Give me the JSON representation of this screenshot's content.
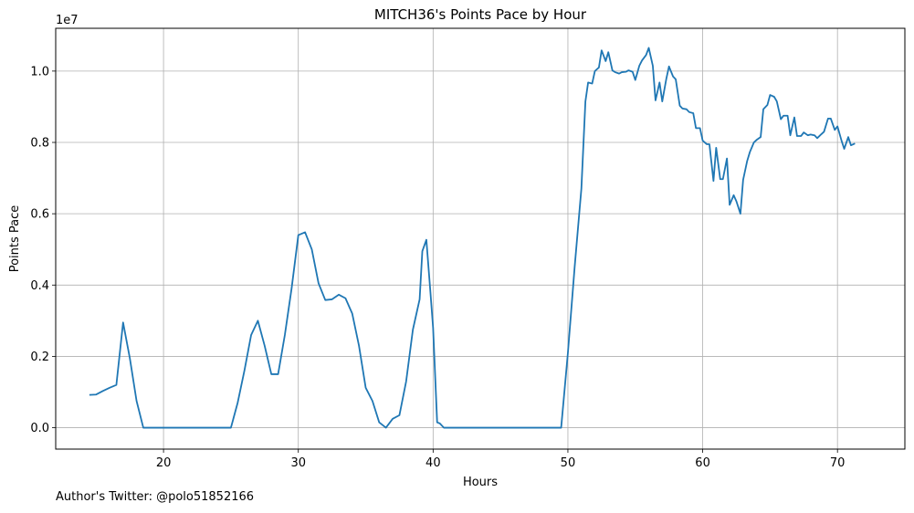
{
  "chart_data": {
    "type": "line",
    "title": "MITCH36's Points Pace by Hour",
    "xlabel": "Hours",
    "ylabel": "Points Pace",
    "y_scale_label": "1e7",
    "xlim": [
      12,
      75
    ],
    "ylim": [
      -0.6,
      11.2
    ],
    "x_ticks": [
      20,
      30,
      40,
      50,
      60,
      70
    ],
    "y_ticks": [
      0.0,
      0.2,
      0.4,
      0.6,
      0.8,
      1.0
    ],
    "y_tick_labels": [
      "0.0",
      "0.2",
      "0.4",
      "0.6",
      "0.8",
      "1.0"
    ],
    "grid": true,
    "series": [
      {
        "color": "#1f77b4",
        "x": [
          14.5,
          15.0,
          15.5,
          16.0,
          16.5,
          17.0,
          17.5,
          18.0,
          18.5,
          19.0,
          20.0,
          21.0,
          22.0,
          23.0,
          24.0,
          25.0,
          25.5,
          26.0,
          26.5,
          27.0,
          27.5,
          28.0,
          28.5,
          29.0,
          29.5,
          30.0,
          30.5,
          31.0,
          31.5,
          32.0,
          32.5,
          33.0,
          33.5,
          34.0,
          34.5,
          35.0,
          35.5,
          36.0,
          36.5,
          37.0,
          37.5,
          38.0,
          38.5,
          39.0,
          39.2,
          39.5,
          39.8,
          40.0,
          40.3,
          40.5,
          40.8,
          41.0,
          42.0,
          43.0,
          44.0,
          45.0,
          46.0,
          47.0,
          48.0,
          49.0,
          49.5,
          50.0,
          50.5,
          51.0,
          51.3,
          51.5,
          51.8,
          52.0,
          52.3,
          52.5,
          52.8,
          53.0,
          53.3,
          53.5,
          53.8,
          54.0,
          54.3,
          54.5,
          54.8,
          55.0,
          55.3,
          55.5,
          55.8,
          56.0,
          56.3,
          56.5,
          56.8,
          57.0,
          57.3,
          57.5,
          57.8,
          58.0,
          58.3,
          58.5,
          58.8,
          59.0,
          59.3,
          59.5,
          59.8,
          60.0,
          60.3,
          60.5,
          60.8,
          61.0,
          61.3,
          61.5,
          61.8,
          62.0,
          62.3,
          62.5,
          62.8,
          63.0,
          63.3,
          63.5,
          63.8,
          64.0,
          64.3,
          64.5,
          64.8,
          65.0,
          65.3,
          65.5,
          65.8,
          66.0,
          66.3,
          66.5,
          66.8,
          67.0,
          67.3,
          67.5,
          67.8,
          68.0,
          68.3,
          68.5,
          68.8,
          69.0,
          69.3,
          69.5,
          69.8,
          70.0,
          70.3,
          70.5,
          70.8,
          71.0,
          71.3
        ],
        "y": [
          0.92,
          0.93,
          1.03,
          1.12,
          1.2,
          2.95,
          1.95,
          0.75,
          0.0,
          0.0,
          0.0,
          0.0,
          0.0,
          0.0,
          0.0,
          0.0,
          0.7,
          1.6,
          2.6,
          3.0,
          2.3,
          1.5,
          1.5,
          2.6,
          3.9,
          5.4,
          5.48,
          5.0,
          4.05,
          3.58,
          3.6,
          3.73,
          3.63,
          3.2,
          2.3,
          1.12,
          0.75,
          0.15,
          0.0,
          0.25,
          0.35,
          1.3,
          2.75,
          3.6,
          4.95,
          5.27,
          3.8,
          2.8,
          0.15,
          0.12,
          0.0,
          0.0,
          0.0,
          0.0,
          0.0,
          0.0,
          0.0,
          0.0,
          0.0,
          0.0,
          0.0,
          2.1,
          4.5,
          6.7,
          9.15,
          9.68,
          9.65,
          10.0,
          10.1,
          10.58,
          10.28,
          10.53,
          10.02,
          9.97,
          9.93,
          9.97,
          9.98,
          10.02,
          9.98,
          9.75,
          10.15,
          10.3,
          10.45,
          10.65,
          10.15,
          9.18,
          9.68,
          9.15,
          9.78,
          10.13,
          9.85,
          9.77,
          9.03,
          8.95,
          8.93,
          8.85,
          8.82,
          8.4,
          8.4,
          8.05,
          7.95,
          7.95,
          6.92,
          7.85,
          6.97,
          6.97,
          7.55,
          6.25,
          6.52,
          6.35,
          6.0,
          6.95,
          7.48,
          7.73,
          8.0,
          8.07,
          8.15,
          8.93,
          9.05,
          9.33,
          9.28,
          9.15,
          8.65,
          8.75,
          8.75,
          8.2,
          8.7,
          8.18,
          8.18,
          8.28,
          8.2,
          8.22,
          8.2,
          8.12,
          8.23,
          8.3,
          8.67,
          8.67,
          8.35,
          8.45,
          8.05,
          7.82,
          8.15,
          7.92,
          7.97
        ]
      }
    ]
  },
  "footnote": "Author's Twitter: @polo51852166"
}
